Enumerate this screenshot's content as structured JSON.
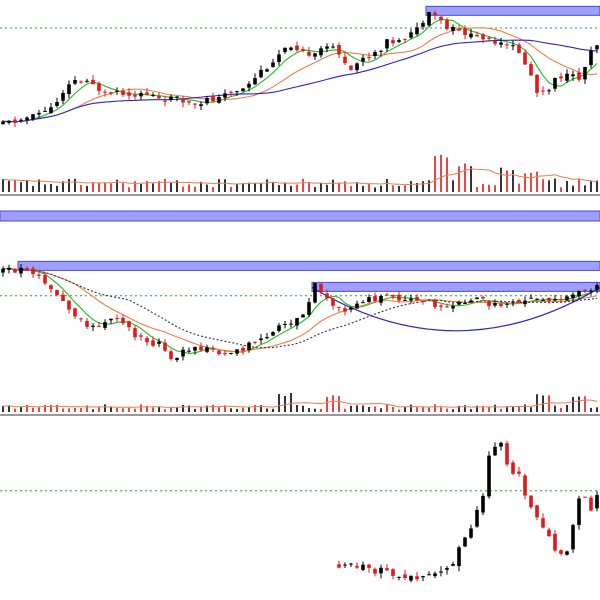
{
  "theme": {
    "background": "#ffffff",
    "up_candle": "#000000",
    "down_candle": "#e0191b",
    "ma_fast": "#1fbf1f",
    "ma_mid": "#f07c4d",
    "ma_slow": "#2626cc",
    "ma_dotted": "#333333",
    "reference_line": "#2ca02c",
    "highlight_fill": "#8f8fff",
    "highlight_stroke": "#2b2bd6",
    "divider": "#333333"
  },
  "chart_data": [
    {
      "type": "candlestick",
      "panel": "top",
      "title": "",
      "grid": false,
      "legend": "none",
      "price_range": [
        0,
        100
      ],
      "reference_level": 88,
      "box": {
        "from_index": 71,
        "to_index": 100,
        "level": 98
      },
      "moving_averages": [
        "fast",
        "mid",
        "slow"
      ],
      "candles": 100,
      "price_path": [
        [
          0,
          30
        ],
        [
          5,
          35
        ],
        [
          9,
          43
        ],
        [
          12,
          57
        ],
        [
          16,
          52
        ],
        [
          22,
          49
        ],
        [
          30,
          44
        ],
        [
          36,
          45
        ],
        [
          40,
          53
        ],
        [
          47,
          75
        ],
        [
          50,
          72
        ],
        [
          54,
          78
        ],
        [
          58,
          65
        ],
        [
          64,
          79
        ],
        [
          69,
          87
        ],
        [
          71,
          100
        ],
        [
          74,
          88
        ],
        [
          80,
          82
        ],
        [
          84,
          80
        ],
        [
          87,
          68
        ],
        [
          89,
          50
        ],
        [
          91,
          53
        ],
        [
          93,
          60
        ],
        [
          96,
          58
        ],
        [
          98,
          72
        ],
        [
          99,
          77
        ]
      ],
      "volume_range": [
        0,
        100
      ],
      "volume_spikes": [
        [
          73,
          90
        ],
        [
          77,
          75
        ],
        [
          84,
          60
        ],
        [
          88,
          55
        ],
        [
          99,
          32
        ]
      ]
    },
    {
      "type": "candlestick",
      "panel": "middle",
      "title": "",
      "grid": false,
      "legend": "none",
      "price_range": [
        0,
        100
      ],
      "reference_level": 73,
      "boxes": [
        {
          "from_index": 3,
          "to_index": 100,
          "level": 94
        },
        {
          "from_index": 52,
          "to_index": 100,
          "level": 79
        }
      ],
      "moving_averages": [
        "fast",
        "mid",
        "dotted"
      ],
      "rounding_bottom": {
        "from_index": 52,
        "to_index": 100,
        "depth_level": 48
      },
      "candles": 100,
      "price_path": [
        [
          0,
          90
        ],
        [
          4,
          94
        ],
        [
          7,
          84
        ],
        [
          10,
          68
        ],
        [
          13,
          55
        ],
        [
          16,
          50
        ],
        [
          19,
          58
        ],
        [
          22,
          45
        ],
        [
          26,
          38
        ],
        [
          28,
          28
        ],
        [
          31,
          35
        ],
        [
          38,
          32
        ],
        [
          40,
          36
        ],
        [
          43,
          42
        ],
        [
          46,
          50
        ],
        [
          50,
          60
        ],
        [
          52,
          80
        ],
        [
          55,
          68
        ],
        [
          57,
          63
        ],
        [
          61,
          70
        ],
        [
          66,
          72
        ],
        [
          71,
          68
        ],
        [
          74,
          64
        ],
        [
          78,
          71
        ],
        [
          83,
          66
        ],
        [
          88,
          70
        ],
        [
          92,
          69
        ],
        [
          96,
          76
        ],
        [
          99,
          79
        ]
      ],
      "volume_range": [
        0,
        100
      ],
      "volume_spikes": [
        [
          47,
          80
        ],
        [
          55,
          70
        ],
        [
          90,
          75
        ],
        [
          96,
          68
        ]
      ]
    },
    {
      "type": "candlestick",
      "panel": "bottom",
      "title": "",
      "grid": false,
      "legend": "none",
      "price_range": [
        0,
        100
      ],
      "reference_level": 62,
      "candles": 100,
      "first_index": 56,
      "price_path": [
        [
          56,
          20
        ],
        [
          60,
          19
        ],
        [
          63,
          15
        ],
        [
          67,
          12
        ],
        [
          70,
          11
        ],
        [
          73,
          14
        ],
        [
          75,
          22
        ],
        [
          78,
          38
        ],
        [
          80,
          60
        ],
        [
          81,
          84
        ],
        [
          83,
          92
        ],
        [
          84,
          78
        ],
        [
          86,
          70
        ],
        [
          88,
          52
        ],
        [
          90,
          42
        ],
        [
          92,
          28
        ],
        [
          94,
          25
        ],
        [
          96,
          60
        ],
        [
          98,
          52
        ],
        [
          99,
          57
        ]
      ]
    }
  ]
}
